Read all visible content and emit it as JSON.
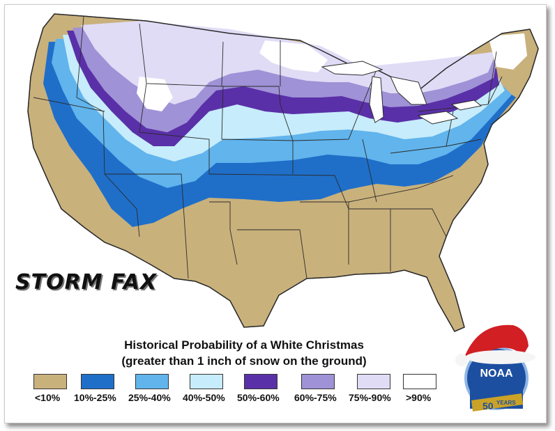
{
  "map": {
    "title": "Historical Probability of a White Christmas",
    "subtitle": "(greater than 1 inch of snow on the ground)",
    "legend": [
      {
        "label": "<10%",
        "color": "#c9b17c"
      },
      {
        "label": "10%-25%",
        "color": "#1f6fc9"
      },
      {
        "label": "25%-40%",
        "color": "#61b4ec"
      },
      {
        "label": "40%-50%",
        "color": "#c7ecfb"
      },
      {
        "label": "50%-60%",
        "color": "#5a30a8"
      },
      {
        "label": "60%-75%",
        "color": "#9f92d6"
      },
      {
        "label": "75%-90%",
        "color": "#e0dcf6"
      },
      {
        "label": ">90%",
        "color": "#ffffff"
      }
    ]
  },
  "branding": {
    "stormfax_logo": "STORM FAX",
    "noaa_logo": "NOAA",
    "noaa_anniversary": "50",
    "noaa_years": "YEARS"
  }
}
